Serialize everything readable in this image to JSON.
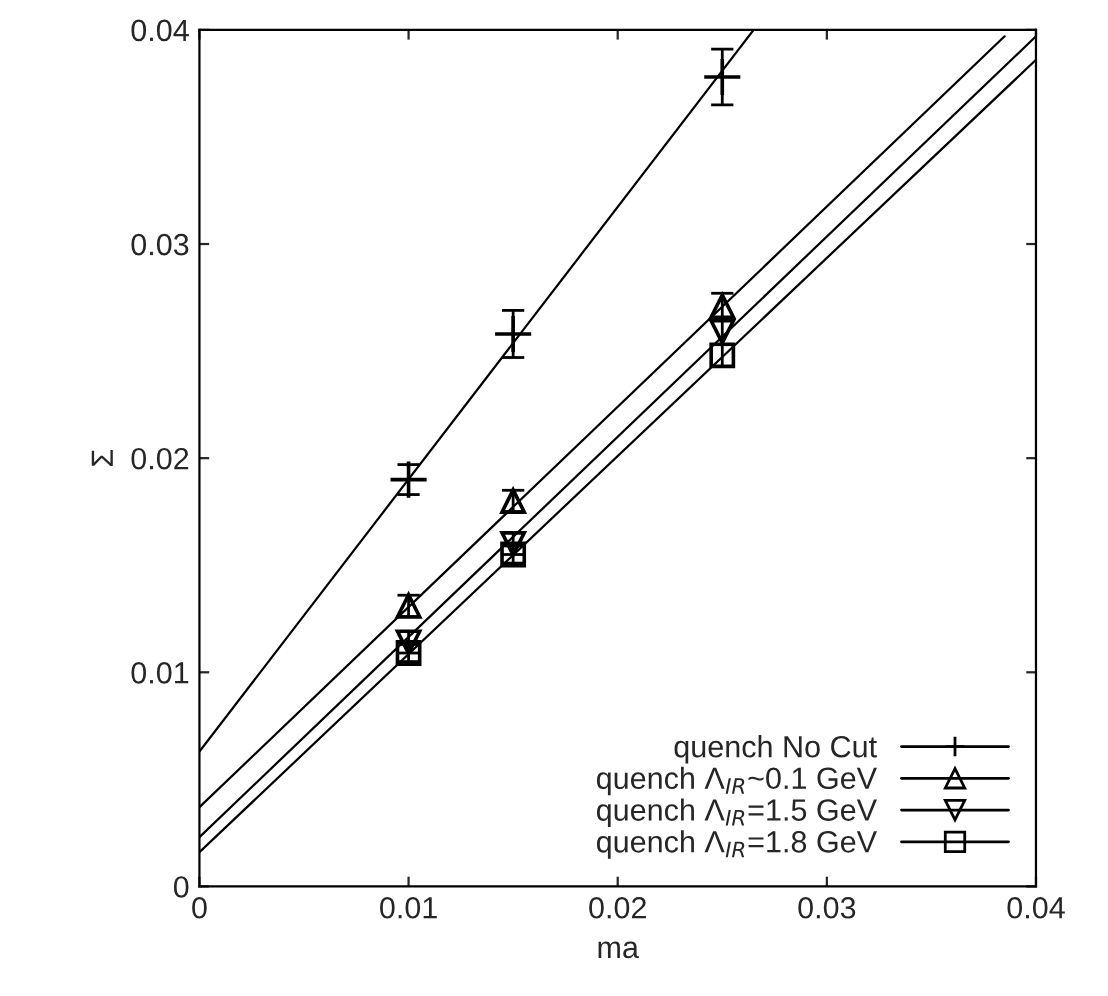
{
  "chart_data": {
    "type": "scatter",
    "xlabel": "ma",
    "ylabel": "Σ",
    "xlim": [
      0,
      0.04
    ],
    "ylim": [
      0,
      0.04
    ],
    "xticks": [
      0,
      0.01,
      0.02,
      0.03,
      0.04
    ],
    "yticks": [
      0,
      0.01,
      0.02,
      0.03,
      0.04
    ],
    "grid": false,
    "legend": "bottom right",
    "series": [
      {
        "name": "quench No Cut",
        "color": "#000000",
        "marker": "cross",
        "x": [
          0.01,
          0.015,
          0.025
        ],
        "values": [
          0.019,
          0.0258,
          0.0378
        ],
        "errors": [
          0.0007,
          0.0011,
          0.0013
        ]
      },
      {
        "name": "quench Λ$_{IR}$~0.1 GeV",
        "color": "#000000",
        "marker": "triangle",
        "x": [
          0.01,
          0.015,
          0.025
        ],
        "values": [
          0.0131,
          0.018,
          0.0271
        ],
        "errors": [
          0.0005,
          0.0005,
          0.0006
        ]
      },
      {
        "name": "quench Λ$_{IR}$=1.5 GeV",
        "color": "#000000",
        "marker": "triangle_down",
        "x": [
          0.01,
          0.015,
          0.025
        ],
        "values": [
          0.0114,
          0.016,
          0.0259
        ],
        "errors": [
          0.0005,
          0.0005,
          0.0006
        ]
      },
      {
        "name": "quench Λ$_{IR}$=1.8 GeV",
        "color": "#000000",
        "marker": "square",
        "x": [
          0.01,
          0.015,
          0.025
        ],
        "values": [
          0.0109,
          0.0155,
          0.0248
        ],
        "errors": [
          0.0004,
          0.0004,
          0.0005
        ]
      },
      {
        "type": "line",
        "color": "#000000",
        "x": [
          0,
          0.0265
        ],
        "values": [
          0.0063,
          0.04
        ]
      },
      {
        "type": "line",
        "color": "#000000",
        "x": [
          0,
          0.0385
        ],
        "values": [
          0.0037,
          0.0397
        ]
      },
      {
        "type": "line",
        "color": "#000000",
        "x": [
          0,
          0.04
        ],
        "values": [
          0.0023,
          0.0397
        ]
      },
      {
        "type": "line",
        "color": "#000000",
        "x": [
          0,
          0.04
        ],
        "values": [
          0.0016,
          0.0386
        ]
      }
    ]
  }
}
